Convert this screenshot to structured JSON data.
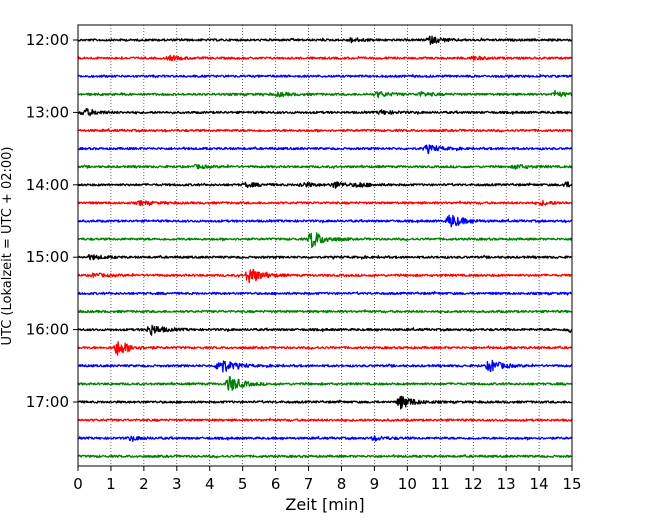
{
  "chart_data": {
    "type": "line",
    "subtype": "helicorder",
    "title": "",
    "xlabel": "Zeit  [min]",
    "ylabel": "UTC (Lokalzeit = UTC + 02:00)",
    "xlim": [
      0,
      15
    ],
    "x_ticks": [
      "0",
      "1",
      "2",
      "3",
      "4",
      "5",
      "6",
      "7",
      "8",
      "9",
      "10",
      "11",
      "12",
      "13",
      "14",
      "15"
    ],
    "vertical_grid": "dotted, every minute",
    "y_ticks": [
      "12:00",
      "13:00",
      "14:00",
      "15:00",
      "16:00",
      "17:00"
    ],
    "ylim_hours": [
      "11:53",
      "17:57"
    ],
    "rows_per_hour": 4,
    "row_interval_min": 15,
    "trace_colors": [
      "#000000",
      "#ff0000",
      "#0000ff",
      "#008000"
    ],
    "rows": [
      {
        "start": "12:00",
        "events": [
          {
            "t": 8.3,
            "amp": 0.9
          },
          {
            "t": 10.7,
            "amp": 1.6
          }
        ]
      },
      {
        "start": "12:15",
        "events": [
          {
            "t": 2.8,
            "amp": 0.8
          },
          {
            "t": 12.0,
            "amp": 0.7
          }
        ]
      },
      {
        "start": "12:30",
        "events": []
      },
      {
        "start": "12:45",
        "events": [
          {
            "t": 6.1,
            "amp": 0.8
          },
          {
            "t": 9.1,
            "amp": 1.2
          },
          {
            "t": 10.4,
            "amp": 0.9
          },
          {
            "t": 14.5,
            "amp": 1.1
          }
        ]
      },
      {
        "start": "13:00",
        "events": [
          {
            "t": 0.2,
            "amp": 1.7
          },
          {
            "t": 9.2,
            "amp": 0.8
          }
        ]
      },
      {
        "start": "13:15",
        "events": []
      },
      {
        "start": "13:30",
        "events": [
          {
            "t": 10.6,
            "amp": 1.6
          }
        ]
      },
      {
        "start": "13:45",
        "events": [
          {
            "t": 3.6,
            "amp": 0.7
          },
          {
            "t": 13.3,
            "amp": 0.9
          }
        ]
      },
      {
        "start": "14:00",
        "events": [
          {
            "t": 5.1,
            "amp": 0.9
          },
          {
            "t": 6.8,
            "amp": 1.0
          },
          {
            "t": 7.8,
            "amp": 1.3
          },
          {
            "t": 8.5,
            "amp": 0.9
          },
          {
            "t": 14.8,
            "amp": 1.1
          }
        ]
      },
      {
        "start": "14:15",
        "events": [
          {
            "t": 1.9,
            "amp": 0.8
          },
          {
            "t": 14.1,
            "amp": 0.8
          }
        ]
      },
      {
        "start": "14:30",
        "events": [
          {
            "t": 11.3,
            "amp": 3.2
          }
        ]
      },
      {
        "start": "14:45",
        "events": [
          {
            "t": 7.1,
            "amp": 4.0
          }
        ]
      },
      {
        "start": "15:00",
        "events": [
          {
            "t": 0.4,
            "amp": 1.0
          }
        ]
      },
      {
        "start": "15:15",
        "events": [
          {
            "t": 5.2,
            "amp": 3.8
          },
          {
            "t": 0.5,
            "amp": 0.8
          }
        ]
      },
      {
        "start": "15:30",
        "events": []
      },
      {
        "start": "15:45",
        "events": []
      },
      {
        "start": "16:00",
        "events": [
          {
            "t": 2.2,
            "amp": 2.4
          },
          {
            "t": 14.9,
            "amp": 1.1
          }
        ]
      },
      {
        "start": "16:15",
        "events": [
          {
            "t": 1.2,
            "amp": 3.4
          }
        ]
      },
      {
        "start": "16:30",
        "events": [
          {
            "t": 4.3,
            "amp": 3.8
          },
          {
            "t": 12.5,
            "amp": 2.8
          }
        ]
      },
      {
        "start": "16:45",
        "events": [
          {
            "t": 4.6,
            "amp": 3.5
          }
        ]
      },
      {
        "start": "17:00",
        "events": [
          {
            "t": 9.8,
            "amp": 3.0
          }
        ]
      },
      {
        "start": "17:15",
        "events": []
      },
      {
        "start": "17:30",
        "events": [
          {
            "t": 1.6,
            "amp": 0.8
          },
          {
            "t": 9.0,
            "amp": 0.8
          }
        ]
      },
      {
        "start": "17:45",
        "events": []
      }
    ]
  }
}
